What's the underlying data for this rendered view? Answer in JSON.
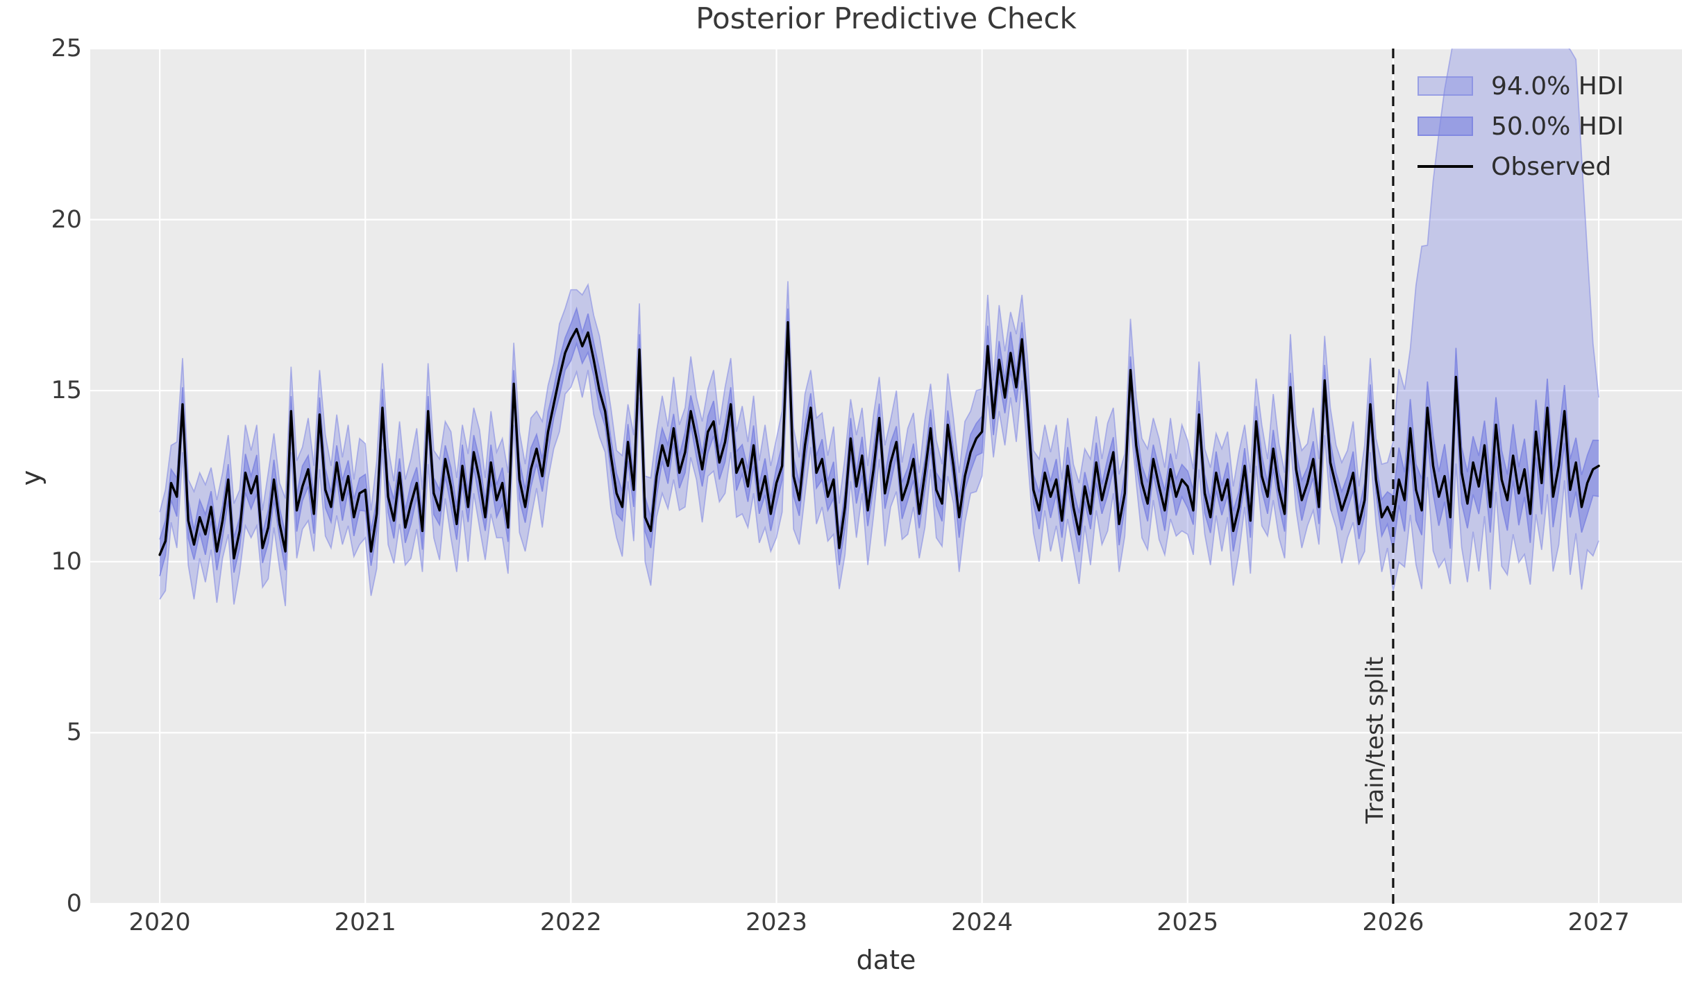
{
  "figure": {
    "title": "Posterior Predictive Check",
    "xlabel": "date",
    "ylabel": "y",
    "plot_bg": "#ebebeb",
    "grid_color": "#ffffff",
    "text_color": "#333333"
  },
  "legend": {
    "items": [
      {
        "label": "94.0% HDI",
        "type": "patch"
      },
      {
        "label": "50.0% HDI",
        "type": "patch"
      },
      {
        "label": "Observed",
        "type": "line"
      }
    ]
  },
  "split": {
    "label": "Train/test split",
    "x": 2026.0
  },
  "chart_data": {
    "type": "line",
    "title": "Posterior Predictive Check",
    "xlabel": "date",
    "ylabel": "y",
    "xlim": [
      2019.662,
      2027.405
    ],
    "ylim": [
      0,
      25
    ],
    "x_ticks": [
      2020,
      2021,
      2022,
      2023,
      2024,
      2025,
      2026,
      2027
    ],
    "y_ticks": [
      0,
      5,
      10,
      15,
      20,
      25
    ],
    "grid": true,
    "legend_position": "upper right",
    "train_test_split_x": 2026.0,
    "hdi_color": "#7c84e1",
    "line_color": "#000000",
    "split_line_color": "#111111",
    "x_start": 2020.0,
    "x_step": 0.0277778,
    "observed": [
      10.2,
      10.6,
      12.3,
      11.9,
      14.6,
      11.2,
      10.5,
      11.3,
      10.8,
      11.6,
      10.3,
      11.2,
      12.4,
      10.1,
      10.9,
      12.6,
      12.0,
      12.5,
      10.4,
      11.0,
      12.4,
      11.1,
      10.3,
      14.4,
      11.5,
      12.2,
      12.7,
      11.4,
      14.3,
      12.1,
      11.6,
      12.9,
      11.8,
      12.5,
      11.3,
      12.0,
      12.1,
      10.3,
      11.4,
      14.5,
      11.9,
      11.2,
      12.6,
      11.0,
      11.7,
      12.3,
      10.9,
      14.4,
      12.0,
      11.5,
      13.0,
      12.2,
      11.1,
      12.8,
      11.6,
      13.2,
      12.4,
      11.3,
      12.9,
      11.8,
      12.3,
      11.0,
      15.2,
      12.4,
      11.6,
      12.7,
      13.3,
      12.5,
      13.8,
      14.6,
      15.4,
      16.1,
      16.5,
      16.8,
      16.3,
      16.7,
      15.9,
      15.0,
      14.4,
      13.1,
      12.0,
      11.6,
      13.5,
      12.1,
      16.2,
      11.3,
      10.9,
      12.5,
      13.4,
      12.8,
      13.9,
      12.6,
      13.2,
      14.4,
      13.6,
      12.7,
      13.8,
      14.1,
      12.9,
      13.5,
      14.6,
      12.6,
      13.0,
      12.2,
      13.4,
      11.8,
      12.5,
      11.4,
      12.3,
      12.8,
      17.0,
      12.5,
      11.8,
      13.4,
      14.5,
      12.6,
      13.0,
      11.9,
      12.4,
      10.4,
      11.6,
      13.6,
      12.2,
      13.1,
      11.5,
      12.7,
      14.2,
      12.0,
      12.9,
      13.5,
      11.8,
      12.3,
      13.0,
      11.4,
      12.6,
      13.9,
      12.1,
      11.7,
      14.0,
      12.8,
      11.3,
      12.5,
      13.2,
      13.6,
      13.8,
      16.3,
      14.2,
      15.9,
      14.8,
      16.1,
      15.1,
      16.5,
      14.4,
      12.1,
      11.5,
      12.6,
      11.9,
      12.4,
      11.2,
      12.8,
      11.6,
      10.8,
      12.2,
      11.4,
      12.9,
      11.8,
      12.5,
      13.2,
      11.1,
      12.0,
      15.6,
      13.4,
      12.3,
      11.7,
      13.0,
      12.2,
      11.5,
      12.7,
      11.9,
      12.4,
      12.2,
      11.5,
      14.3,
      12.0,
      11.3,
      12.6,
      11.8,
      12.4,
      10.9,
      11.6,
      12.8,
      11.2,
      14.1,
      12.5,
      11.9,
      13.3,
      12.1,
      11.4,
      15.1,
      12.7,
      11.8,
      12.3,
      13.0,
      11.6,
      15.3,
      12.9,
      12.2,
      11.5,
      12.0,
      12.6,
      11.1,
      11.8,
      14.6,
      12.4,
      11.3,
      11.6,
      11.2,
      12.4,
      11.8,
      13.9,
      12.1,
      11.5,
      14.5,
      12.8,
      11.9,
      12.5,
      11.3,
      15.4,
      12.6,
      11.7,
      12.9,
      12.2,
      13.4,
      11.6,
      14.0,
      12.4,
      11.8,
      13.1,
      12.0,
      12.7,
      11.4,
      13.8,
      12.3,
      14.5,
      11.9,
      12.8,
      14.4,
      12.1,
      12.9,
      11.6,
      12.3,
      12.7,
      12.8
    ],
    "hdi94": {
      "label": "94.0% HDI",
      "alpha": 0.35,
      "train_width_jitter": [
        1.25,
        1.5,
        1.1,
        1.6,
        1.35,
        1.2,
        1.55,
        1.3,
        1.45,
        1.15,
        1.5,
        1.4,
        1.3,
        1.6,
        1.2,
        1.4
      ],
      "test_lo_offset": 2.3,
      "test_hi": [
        [
          2026.0,
          13.5
        ],
        [
          2026.03,
          15.8
        ],
        [
          2026.06,
          14.9
        ],
        [
          2026.09,
          16.6
        ],
        [
          2026.13,
          19.4
        ],
        [
          2026.16,
          18.8
        ],
        [
          2026.2,
          21.5
        ],
        [
          2026.25,
          23.8
        ],
        [
          2026.31,
          25.8
        ],
        [
          2026.4,
          27.0
        ],
        [
          2026.55,
          27.8
        ],
        [
          2026.7,
          27.2
        ],
        [
          2026.8,
          26.2
        ],
        [
          2026.85,
          24.6
        ],
        [
          2026.88,
          25.6
        ],
        [
          2026.91,
          22.5
        ],
        [
          2026.94,
          19.5
        ],
        [
          2026.97,
          16.5
        ],
        [
          2027.0,
          14.8
        ]
      ]
    },
    "hdi50": {
      "label": "50.0% HDI",
      "alpha": 0.62,
      "train_width_jitter": [
        0.45,
        0.6,
        0.4,
        0.55,
        0.5,
        0.62,
        0.42,
        0.5,
        0.58,
        0.46,
        0.52,
        0.44
      ],
      "test_half_width": 0.85
    },
    "test_jitter": [
      0.9,
      1.05,
      0.85,
      1.1,
      0.95,
      1.0,
      0.88,
      1.08
    ]
  }
}
